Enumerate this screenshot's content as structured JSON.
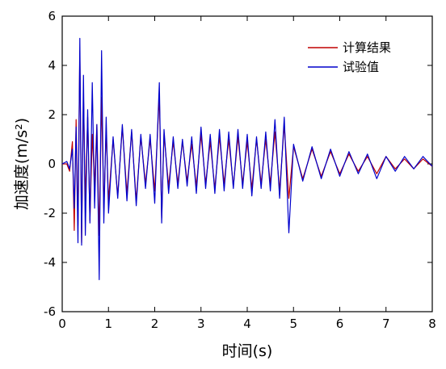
{
  "chart_data": {
    "type": "line",
    "title": "",
    "xlabel": "时间(s)",
    "ylabel": "加速度(m/s²)",
    "xlim": [
      0,
      8
    ],
    "ylim": [
      -6,
      6
    ],
    "x_ticks": [
      0,
      1,
      2,
      3,
      4,
      5,
      6,
      7,
      8
    ],
    "y_ticks": [
      -6,
      -4,
      -2,
      0,
      2,
      4,
      6
    ],
    "grid": false,
    "legend_position": "top-right",
    "series": [
      {
        "name": "计算结果",
        "color": "#c00000",
        "x": [
          0,
          0.1,
          0.16,
          0.22,
          0.26,
          0.3,
          0.34,
          0.38,
          0.42,
          0.46,
          0.5,
          0.55,
          0.6,
          0.65,
          0.7,
          0.75,
          0.8,
          0.85,
          0.9,
          0.95,
          1.0,
          1.1,
          1.2,
          1.3,
          1.4,
          1.5,
          1.6,
          1.7,
          1.8,
          1.9,
          2.0,
          2.1,
          2.15,
          2.2,
          2.3,
          2.4,
          2.5,
          2.6,
          2.7,
          2.8,
          2.9,
          3.0,
          3.1,
          3.2,
          3.3,
          3.4,
          3.5,
          3.6,
          3.7,
          3.8,
          3.9,
          4.0,
          4.1,
          4.2,
          4.3,
          4.4,
          4.5,
          4.6,
          4.7,
          4.8,
          4.9,
          5.0,
          5.2,
          5.4,
          5.6,
          5.8,
          6.0,
          6.2,
          6.4,
          6.6,
          6.8,
          7.0,
          7.2,
          7.4,
          7.6,
          7.8,
          8.0
        ],
        "y": [
          0,
          0,
          -0.3,
          0.9,
          -2.7,
          1.8,
          -2.5,
          4.6,
          -3.2,
          2.8,
          -1.5,
          1.9,
          -2.3,
          1.2,
          -0.9,
          1.6,
          -2.9,
          2.7,
          -1.8,
          1.4,
          -1.5,
          1.0,
          -1.3,
          1.5,
          -1.2,
          1.3,
          -1.5,
          1.1,
          -0.8,
          1.0,
          -1.1,
          2.8,
          -2.2,
          1.2,
          -0.9,
          0.9,
          -0.8,
          0.9,
          -0.7,
          0.8,
          -0.9,
          1.2,
          -0.8,
          0.9,
          -1.0,
          1.1,
          -0.8,
          1.0,
          -0.9,
          1.1,
          -0.8,
          0.9,
          -1.0,
          1.0,
          -0.8,
          1.0,
          -0.8,
          1.3,
          -1.1,
          1.6,
          -1.4,
          0.7,
          -0.6,
          0.6,
          -0.5,
          0.5,
          -0.4,
          0.4,
          -0.3,
          0.3,
          -0.4,
          0.3,
          -0.2,
          0.2,
          -0.2,
          0.2,
          -0.1
        ]
      },
      {
        "name": "试验值",
        "color": "#0000cc",
        "x": [
          0,
          0.1,
          0.16,
          0.22,
          0.26,
          0.3,
          0.34,
          0.38,
          0.42,
          0.46,
          0.5,
          0.55,
          0.6,
          0.65,
          0.7,
          0.75,
          0.8,
          0.85,
          0.9,
          0.95,
          1.0,
          1.1,
          1.2,
          1.3,
          1.4,
          1.5,
          1.6,
          1.7,
          1.8,
          1.9,
          2.0,
          2.1,
          2.15,
          2.2,
          2.3,
          2.4,
          2.5,
          2.6,
          2.7,
          2.8,
          2.9,
          3.0,
          3.1,
          3.2,
          3.3,
          3.4,
          3.5,
          3.6,
          3.7,
          3.8,
          3.9,
          4.0,
          4.1,
          4.2,
          4.3,
          4.4,
          4.5,
          4.6,
          4.7,
          4.8,
          4.9,
          5.0,
          5.2,
          5.4,
          5.6,
          5.8,
          6.0,
          6.2,
          6.4,
          6.6,
          6.8,
          7.0,
          7.2,
          7.4,
          7.6,
          7.8,
          8.0
        ],
        "y": [
          0,
          0.1,
          -0.2,
          0.6,
          -1.8,
          1.5,
          -3.2,
          5.1,
          -3.3,
          3.6,
          -2.9,
          2.2,
          -2.4,
          3.3,
          -1.8,
          1.6,
          -4.7,
          4.6,
          -2.4,
          1.9,
          -2.0,
          1.1,
          -1.4,
          1.6,
          -1.5,
          1.4,
          -1.7,
          1.2,
          -1.0,
          1.2,
          -1.6,
          3.3,
          -2.4,
          1.4,
          -1.2,
          1.1,
          -1.0,
          1.0,
          -0.9,
          1.1,
          -1.2,
          1.5,
          -1.0,
          1.2,
          -1.2,
          1.4,
          -1.1,
          1.3,
          -1.0,
          1.4,
          -1.0,
          1.2,
          -1.3,
          1.1,
          -1.0,
          1.3,
          -1.1,
          1.8,
          -1.4,
          1.9,
          -2.8,
          0.8,
          -0.7,
          0.7,
          -0.6,
          0.6,
          -0.5,
          0.5,
          -0.4,
          0.4,
          -0.6,
          0.3,
          -0.3,
          0.3,
          -0.2,
          0.3,
          -0.1
        ]
      }
    ]
  }
}
